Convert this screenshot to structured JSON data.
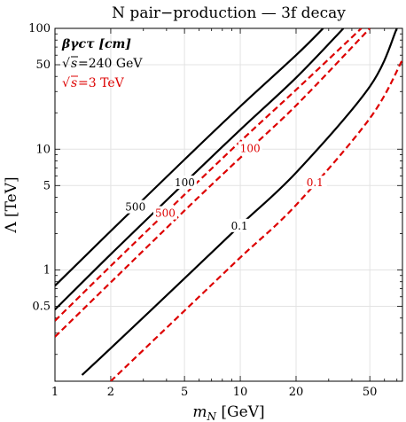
{
  "chart_data": {
    "type": "line",
    "title": "N pair−production — 3f decay",
    "xlabel_main": "m",
    "xlabel_sub": "N",
    "xlabel_unit": " [GeV]",
    "ylabel": "Λ [TeV]",
    "xscale": "log",
    "yscale": "log",
    "xlim": [
      1,
      75
    ],
    "ylim": [
      0.12,
      100
    ],
    "grid": true,
    "x_ticks": [
      {
        "value": 1,
        "label": "1"
      },
      {
        "value": 2,
        "label": "2"
      },
      {
        "value": 5,
        "label": "5"
      },
      {
        "value": 10,
        "label": "10"
      },
      {
        "value": 20,
        "label": "20"
      },
      {
        "value": 50,
        "label": "50"
      }
    ],
    "y_ticks": [
      {
        "value": 0.5,
        "label": "0.5"
      },
      {
        "value": 1,
        "label": "1"
      },
      {
        "value": 5,
        "label": "5"
      },
      {
        "value": 10,
        "label": "10"
      },
      {
        "value": 50,
        "label": "50"
      },
      {
        "value": 100,
        "label": "100"
      }
    ],
    "legend": {
      "header": "βγcτ [cm]",
      "entries": [
        {
          "text": "=240 GeV",
          "color": "#000000"
        },
        {
          "text": "=3 TeV",
          "color": "#dd0000"
        }
      ],
      "placement": "top-left"
    },
    "series": [
      {
        "label": "500",
        "style": "solid",
        "color": "#000000",
        "points": [
          [
            1,
            0.74
          ],
          [
            2,
            2.1
          ],
          [
            5,
            8.2
          ],
          [
            10,
            22.6
          ],
          [
            20,
            60
          ],
          [
            28,
            100
          ]
        ]
      },
      {
        "label": "100",
        "style": "solid",
        "color": "#000000",
        "points": [
          [
            1,
            0.47
          ],
          [
            2,
            1.35
          ],
          [
            5,
            5.25
          ],
          [
            10,
            14.5
          ],
          [
            20,
            39
          ],
          [
            36,
            100
          ]
        ]
      },
      {
        "label": "0.1",
        "style": "solid",
        "color": "#000000",
        "points": [
          [
            1.4,
            0.135
          ],
          [
            2,
            0.225
          ],
          [
            5,
            0.85
          ],
          [
            10,
            2.35
          ],
          [
            20,
            6.4
          ],
          [
            50,
            33
          ],
          [
            70,
            100
          ]
        ]
      },
      {
        "label": "500",
        "style": "dashed",
        "color": "#dd0000",
        "points": [
          [
            1,
            0.38
          ],
          [
            2,
            1.08
          ],
          [
            5,
            4.2
          ],
          [
            10,
            11.6
          ],
          [
            20,
            31
          ],
          [
            45,
            100
          ]
        ]
      },
      {
        "label": "100",
        "style": "dashed",
        "color": "#dd0000",
        "points": [
          [
            1,
            0.28
          ],
          [
            2,
            0.79
          ],
          [
            5,
            3.1
          ],
          [
            10,
            8.5
          ],
          [
            20,
            23
          ],
          [
            50,
            100
          ]
        ]
      },
      {
        "label": "0.1",
        "style": "dashed",
        "color": "#dd0000",
        "points": [
          [
            2,
            0.12
          ],
          [
            5,
            0.46
          ],
          [
            10,
            1.27
          ],
          [
            20,
            3.45
          ],
          [
            50,
            18
          ],
          [
            75,
            55
          ]
        ]
      }
    ]
  }
}
